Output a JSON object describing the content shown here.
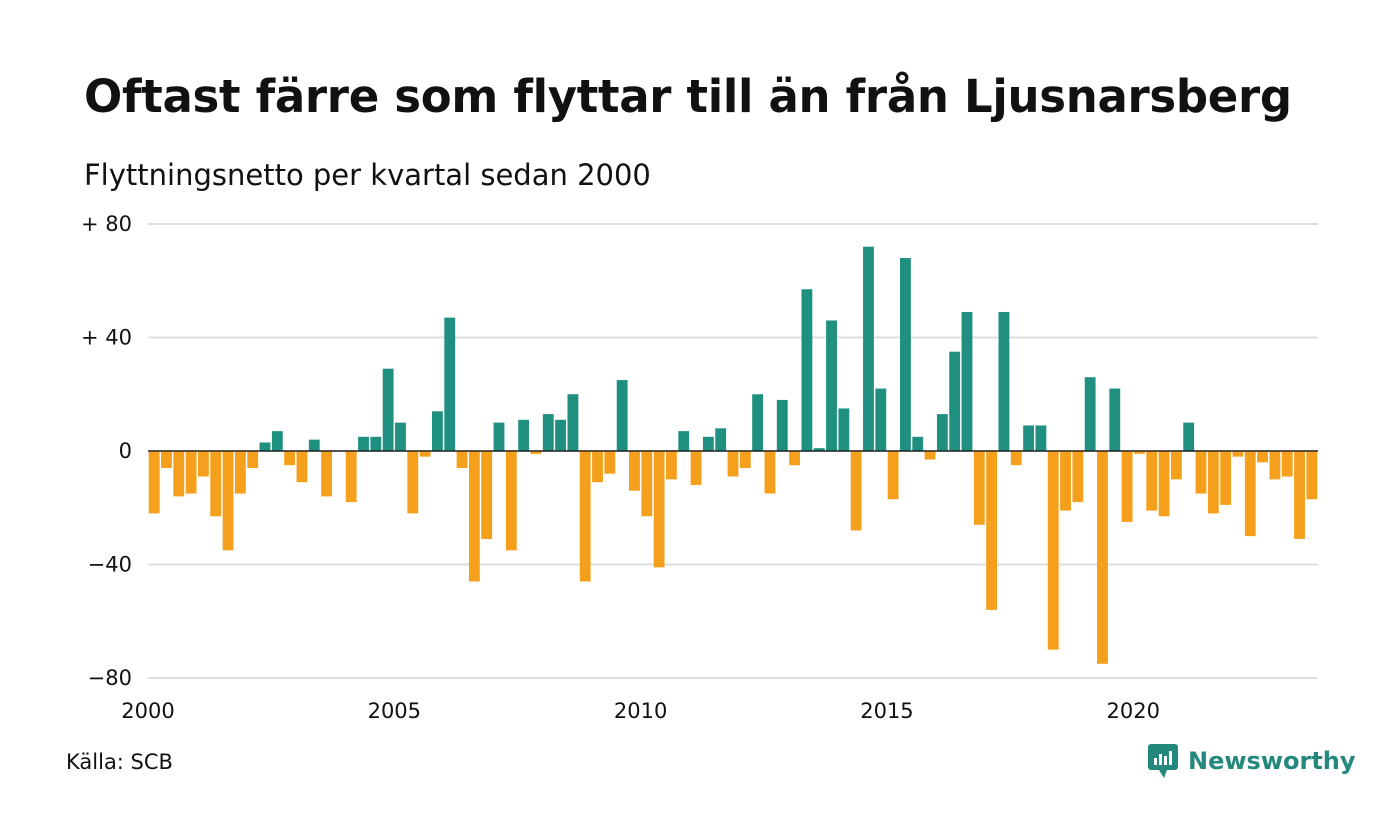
{
  "title": "Oftast färre som flyttar till än från Ljusnarsberg",
  "subtitle": "Flyttningsnetto per kvartal sedan 2000",
  "source": "Källa: SCB",
  "brand": {
    "name": "Newsworthy",
    "icon": "newsworthy-logo-icon"
  },
  "colors": {
    "positive": "#1f8f80",
    "negative": "#f5a01d",
    "grid": "#dddddd",
    "baseline": "#111111",
    "brand": "#24897c"
  },
  "chart_data": {
    "type": "bar",
    "title": "Oftast färre som flyttar till än från Ljusnarsberg",
    "subtitle": "Flyttningsnetto per kvartal sedan 2000",
    "x_start": "2000 Q1",
    "x_ticks": [
      "2000",
      "2005",
      "2010",
      "2015",
      "2020"
    ],
    "y_ticks": [
      "+ 80",
      "+ 40",
      "0",
      "−40",
      "−80"
    ],
    "y_tick_values": [
      80,
      40,
      0,
      -40,
      -80
    ],
    "ylim": [
      -80,
      80
    ],
    "grid": true,
    "values": [
      -22,
      -6,
      -16,
      -15,
      -9,
      -23,
      -35,
      -15,
      -6,
      3,
      7,
      -5,
      -11,
      4,
      -16,
      0,
      -18,
      5,
      5,
      29,
      10,
      -22,
      -2,
      14,
      47,
      -6,
      -46,
      -31,
      10,
      -35,
      11,
      -1,
      13,
      11,
      20,
      -46,
      -11,
      -8,
      25,
      -14,
      -23,
      -41,
      -10,
      7,
      -12,
      5,
      8,
      -9,
      -6,
      20,
      -15,
      18,
      -5,
      57,
      1,
      46,
      15,
      -28,
      72,
      22,
      -17,
      68,
      5,
      -3,
      13,
      35,
      49,
      -26,
      -56,
      49,
      -5,
      9,
      9,
      -70,
      -21,
      -18,
      26,
      -75,
      22,
      -25,
      -1,
      -21,
      -23,
      -10,
      10,
      -15,
      -22,
      -19,
      -2,
      -30,
      -4,
      -10,
      -9,
      -31,
      -17
    ]
  }
}
